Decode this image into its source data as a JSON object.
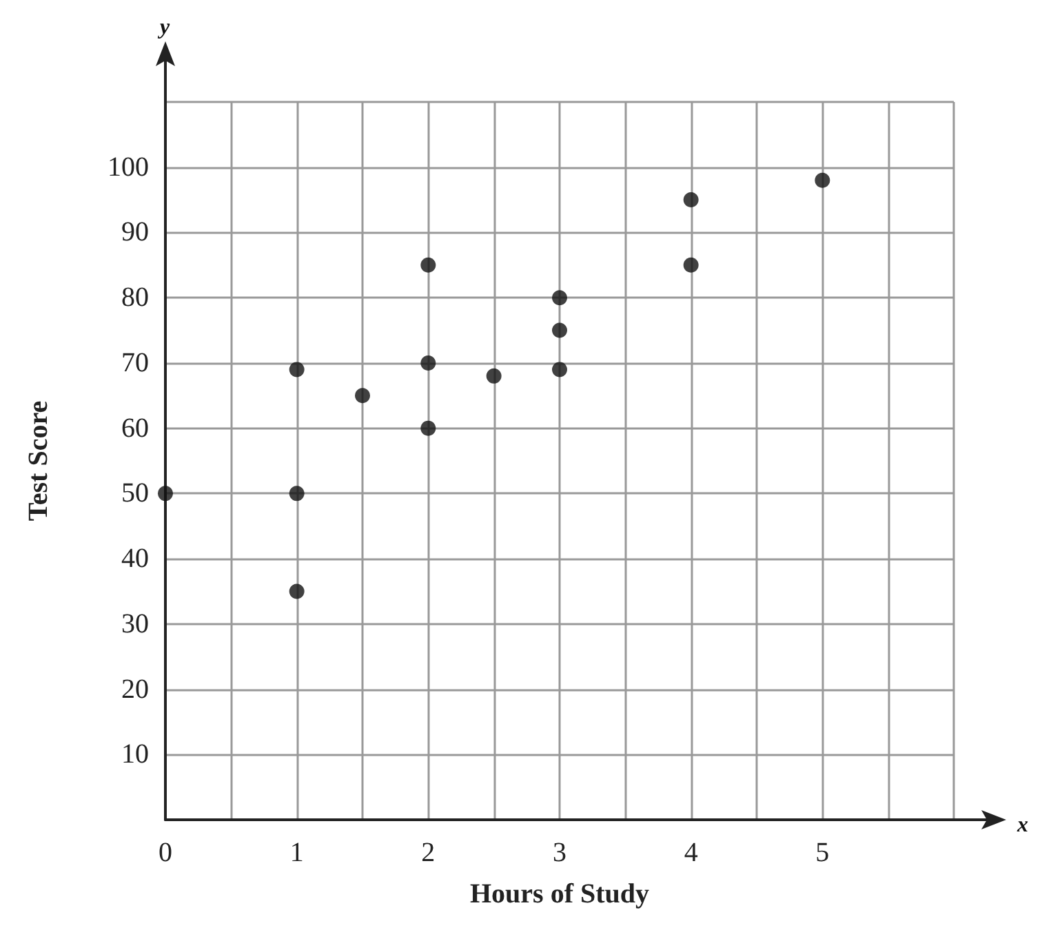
{
  "chart_data": {
    "type": "scatter",
    "xlabel": "Hours of Study",
    "ylabel": "Test Score",
    "annotations": [
      "x",
      "y"
    ],
    "x": [
      0,
      1,
      1,
      1,
      1.5,
      2,
      2,
      2,
      2.5,
      3,
      3,
      3,
      4,
      4,
      5
    ],
    "values": [
      50,
      69,
      50,
      35,
      65,
      85,
      70,
      60,
      68,
      80,
      75,
      69,
      95,
      85,
      98
    ],
    "color": "#111111",
    "marker": "circle",
    "grid": true,
    "xlim": [
      0,
      6
    ],
    "xticks": [
      0,
      {
        "value": 0.5,
        "label": null
      },
      1,
      {
        "value": 1.5,
        "label": null
      },
      2,
      {
        "value": 2.5,
        "label": null
      },
      3,
      {
        "value": 3.5,
        "label": null
      },
      4,
      {
        "value": 4.5,
        "label": null
      },
      5,
      {
        "value": 5.5,
        "label": null
      },
      {
        "value": 6,
        "label": null
      }
    ],
    "ylim": [
      0,
      110
    ],
    "yticks": [
      {
        "value": 0,
        "label": null
      },
      10,
      20,
      30,
      40,
      50,
      60,
      70,
      80,
      90,
      100,
      {
        "value": 110,
        "label": null
      }
    ]
  }
}
